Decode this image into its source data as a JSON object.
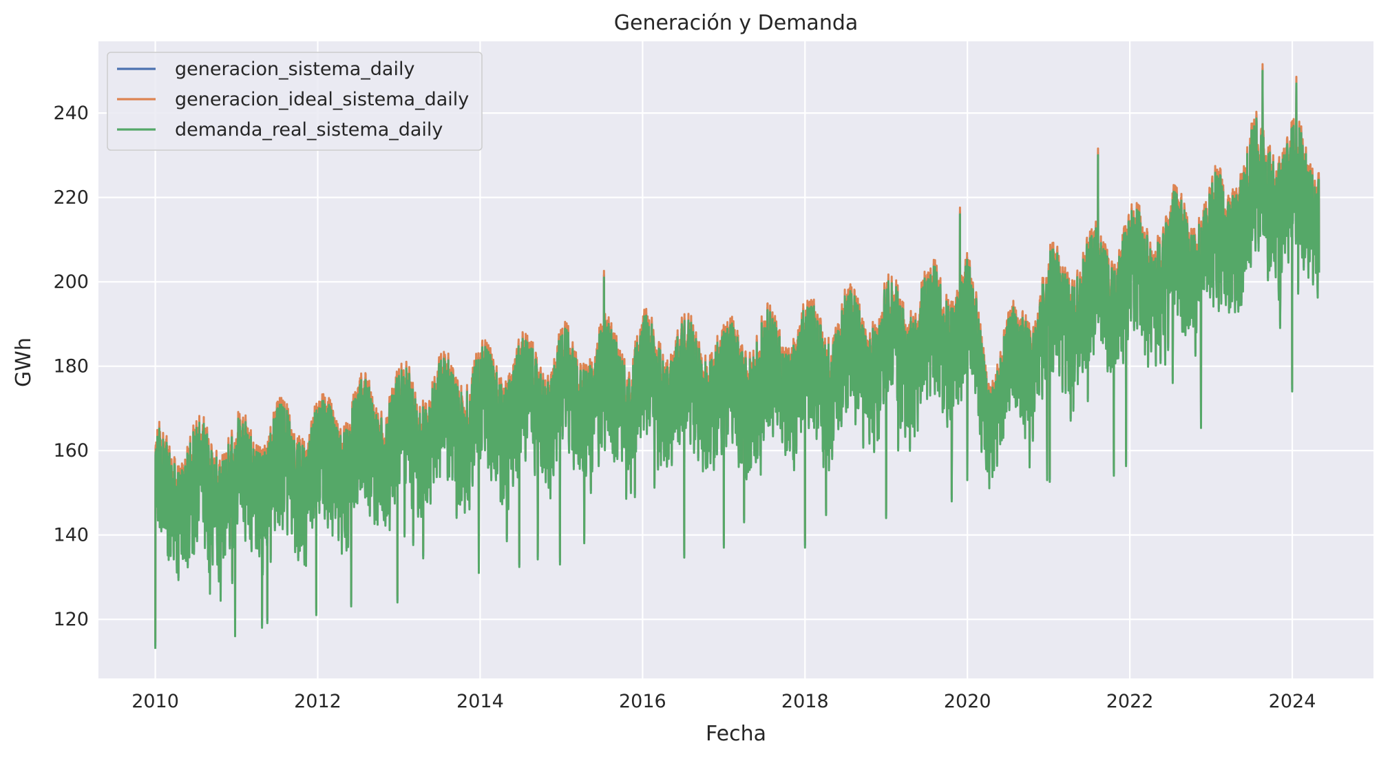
{
  "chart_data": {
    "type": "line",
    "title": "Generación y Demanda",
    "xlabel": "Fecha",
    "ylabel": "GWh",
    "xlim": [
      2009.3,
      2025.0
    ],
    "ylim": [
      106,
      257
    ],
    "x_ticks": [
      2010,
      2012,
      2014,
      2016,
      2018,
      2020,
      2022,
      2024
    ],
    "x_tick_labels": [
      "2010",
      "2012",
      "2014",
      "2016",
      "2018",
      "2020",
      "2022",
      "2024"
    ],
    "y_ticks": [
      120,
      140,
      160,
      180,
      200,
      220,
      240
    ],
    "y_tick_labels": [
      "120",
      "140",
      "160",
      "180",
      "200",
      "220",
      "240"
    ],
    "grid": true,
    "legend_position": "top-left",
    "background": "#eaeaf2",
    "x_range": [
      "2010-01-01",
      "2024-04-30"
    ],
    "trend_points": [
      {
        "x": "2010-01",
        "mid": 148,
        "amp": 22
      },
      {
        "x": "2011-01",
        "mid": 152,
        "amp": 22
      },
      {
        "x": "2012-01",
        "mid": 156,
        "amp": 22
      },
      {
        "x": "2013-01",
        "mid": 163,
        "amp": 22
      },
      {
        "x": "2014-01",
        "mid": 168,
        "amp": 22
      },
      {
        "x": "2015-01",
        "mid": 171,
        "amp": 23
      },
      {
        "x": "2016-01",
        "mid": 175,
        "amp": 22
      },
      {
        "x": "2017-01",
        "mid": 174,
        "amp": 22
      },
      {
        "x": "2018-01",
        "mid": 178,
        "amp": 22
      },
      {
        "x": "2019-01",
        "mid": 183,
        "amp": 23
      },
      {
        "x": "2020-01",
        "mid": 189,
        "amp": 23
      },
      {
        "x": "2020-04",
        "mid": 170,
        "amp": 18
      },
      {
        "x": "2021-01",
        "mid": 190,
        "amp": 22
      },
      {
        "x": "2022-01",
        "mid": 200,
        "amp": 22
      },
      {
        "x": "2023-01",
        "mid": 207,
        "amp": 23
      },
      {
        "x": "2023-09",
        "mid": 222,
        "amp": 25
      },
      {
        "x": "2024-04",
        "mid": 218,
        "amp": 22
      }
    ],
    "series": [
      {
        "name": "generacion_sistema_daily",
        "color": "#4c72b0",
        "offset": 0.6
      },
      {
        "name": "generacion_ideal_sistema_daily",
        "color": "#dd8452",
        "offset": 1.6
      },
      {
        "name": "demanda_real_sistema_daily",
        "color": "#55a868",
        "offset": 0.0
      }
    ],
    "min_dips": [
      {
        "x": "2010-01-01",
        "y": 113
      },
      {
        "x": "2010-12-25",
        "y": 116
      },
      {
        "x": "2011-04-24",
        "y": 118
      },
      {
        "x": "2011-12-25",
        "y": 121
      },
      {
        "x": "2012-12-25",
        "y": 124
      },
      {
        "x": "2013-12-25",
        "y": 131
      },
      {
        "x": "2014-12-25",
        "y": 133
      },
      {
        "x": "2017-01-01",
        "y": 137
      },
      {
        "x": "2018-01-01",
        "y": 137
      },
      {
        "x": "2019-01-01",
        "y": 144
      },
      {
        "x": "2020-01-01",
        "y": 153
      },
      {
        "x": "2020-12-25",
        "y": 153
      },
      {
        "x": "2024-01-01",
        "y": 174
      }
    ],
    "max_peaks": [
      {
        "x": "2023-08-20",
        "y": 250
      },
      {
        "x": "2024-01-20",
        "y": 247
      },
      {
        "x": "2021-08-10",
        "y": 230
      },
      {
        "x": "2015-07-10",
        "y": 201
      },
      {
        "x": "2019-11-28",
        "y": 216
      }
    ]
  }
}
